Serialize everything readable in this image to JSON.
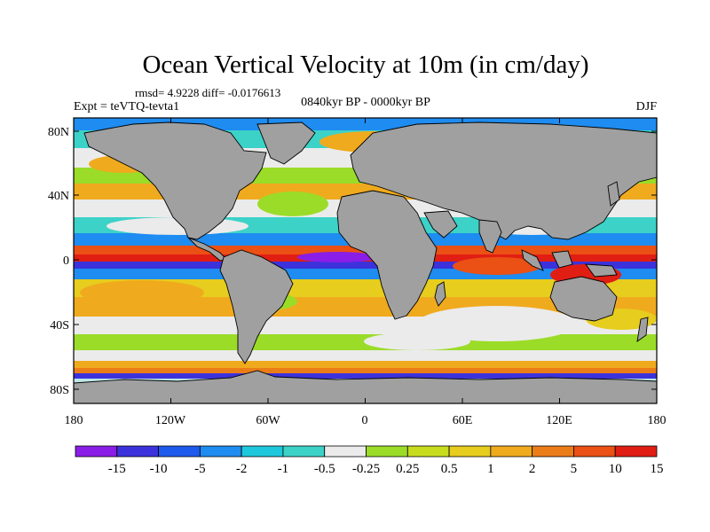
{
  "title": "Ocean Vertical Velocity at 10m (in cm/day)",
  "stats": "rmsd= 4.9228 diff= -0.0176613",
  "period": "0840kyr BP - 0000kyr BP",
  "experiment": "Expt = teVTQ-tevta1",
  "season": "DJF",
  "lat_labels": [
    "80N",
    "40N",
    "0",
    "40S",
    "80S"
  ],
  "lon_labels": [
    "180",
    "120W",
    "60W",
    "0",
    "60E",
    "120E",
    "180"
  ],
  "colorbar": {
    "colors": [
      "#8a1ee6",
      "#3c32dc",
      "#1e5aeb",
      "#1e8cf0",
      "#1ec8dc",
      "#3cd2c8",
      "#ebebeb",
      "#9bdc28",
      "#c8dc1e",
      "#e6cd1e",
      "#f0aa1e",
      "#eb7d19",
      "#eb5014",
      "#e11e14"
    ],
    "labels": [
      "-15",
      "-10",
      "-5",
      "-2",
      "-1",
      "-0.5",
      "-0.25",
      "0.25",
      "0.5",
      "1",
      "2",
      "5",
      "10",
      "15"
    ]
  },
  "land_color": "#a0a0a0"
}
